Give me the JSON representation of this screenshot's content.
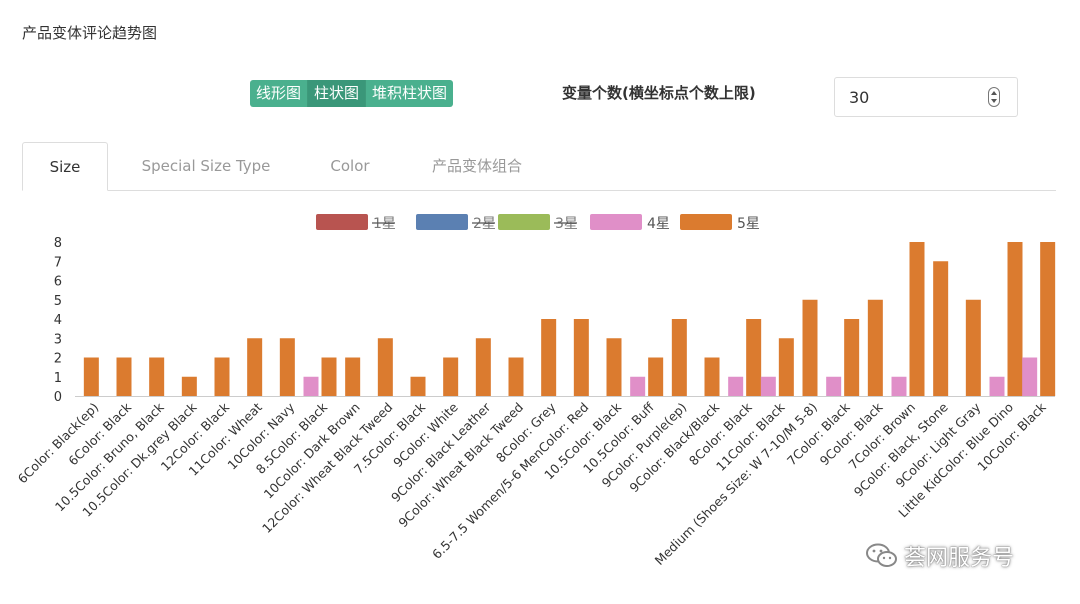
{
  "page": {
    "title": "产品变体评论趋势图"
  },
  "toolbar": {
    "buttons": [
      "线形图",
      "柱状图",
      "堆积柱状图"
    ],
    "active": "柱状图",
    "variable_label": "变量个数(横坐标点个数上限)",
    "variable_value": "30"
  },
  "tabs": [
    "Size",
    "Special Size Type",
    "Color",
    "产品变体组合"
  ],
  "active_tab": "Size",
  "watermark": {
    "text": "荟网服务号",
    "icon": "wechat-icon"
  },
  "chart_data": {
    "type": "bar",
    "title": "",
    "xlabel": "",
    "ylabel": "",
    "ylim": [
      0,
      8
    ],
    "yticks": [
      0,
      1,
      2,
      3,
      4,
      5,
      6,
      7,
      8
    ],
    "grid": false,
    "legend_position": "top-center",
    "categories": [
      "6Color: Black(ep)",
      "6Color: Black",
      "10.5Color: Bruno, Black",
      "10.5Color: Dk.grey Black",
      "12Color: Black",
      "11Color: Wheat",
      "10Color: Navy",
      "8.5Color: Black",
      "10Color: Dark Brown",
      "12Color: Wheat Black Tweed",
      "7.5Color: Black",
      "9Color: White",
      "9Color: Black Leather",
      "9Color: Wheat Black Tweed",
      "8Color: Grey",
      "6.5-7.5 Women/5-6 MenColor: Red",
      "10.5Color: Black",
      "10.5Color: Buff",
      "9Color: Purple(ep)",
      "9Color: Black/Black",
      "8Color: Black",
      "11Color: Black",
      "Medium (Shoes Size: W 7-10/M 5-8)",
      "7Color: Black",
      "9Color: Black",
      "7Color: Brown",
      "9Color: Black, Stone",
      "9Color: Light Gray",
      "Little KidColor: Blue Dino",
      "10Color: Black"
    ],
    "series": [
      {
        "name": "1星",
        "color": "#b85450",
        "hidden": true,
        "values": [
          0,
          0,
          0,
          0,
          0,
          0,
          0,
          0,
          0,
          0,
          0,
          0,
          0,
          0,
          0,
          0,
          0,
          0,
          0,
          0,
          0,
          0,
          0,
          0,
          0,
          0,
          0,
          0,
          0,
          0
        ]
      },
      {
        "name": "2星",
        "color": "#5b80b2",
        "hidden": true,
        "values": [
          0,
          0,
          0,
          0,
          0,
          0,
          0,
          0,
          0,
          0,
          0,
          0,
          0,
          0,
          0,
          0,
          0,
          0,
          0,
          0,
          0,
          0,
          0,
          0,
          0,
          0,
          0,
          0,
          0,
          0
        ]
      },
      {
        "name": "3星",
        "color": "#9bbb59",
        "hidden": true,
        "values": [
          0,
          0,
          0,
          0,
          0,
          0,
          0,
          0,
          0,
          0,
          0,
          0,
          0,
          0,
          0,
          0,
          0,
          0,
          0,
          0,
          0,
          0,
          0,
          0,
          0,
          0,
          0,
          0,
          0,
          0
        ]
      },
      {
        "name": "4星",
        "color": "#e08fc8",
        "hidden": false,
        "values": [
          0,
          0,
          0,
          0,
          0,
          0,
          0,
          1,
          0,
          0,
          0,
          0,
          0,
          0,
          0,
          0,
          0,
          1,
          0,
          0,
          1,
          1,
          0,
          1,
          0,
          1,
          0,
          0,
          1,
          2
        ]
      },
      {
        "name": "5星",
        "color": "#db7b2f",
        "hidden": false,
        "values": [
          2,
          2,
          2,
          1,
          2,
          3,
          3,
          2,
          2,
          3,
          1,
          2,
          3,
          2,
          4,
          4,
          3,
          2,
          4,
          2,
          4,
          3,
          5,
          4,
          5,
          8,
          7,
          5,
          8,
          8
        ]
      }
    ]
  }
}
